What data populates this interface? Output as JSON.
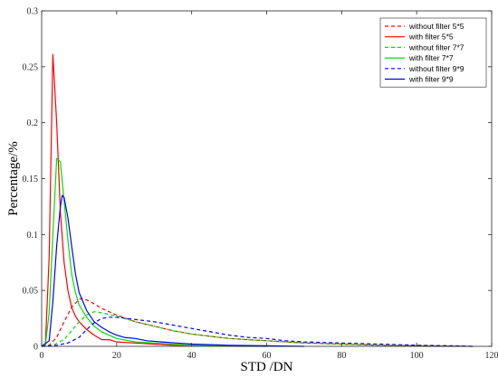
{
  "chart_data": {
    "type": "line",
    "xlabel": "STD /DN",
    "ylabel": "Percentage/%",
    "xlim": [
      0,
      120
    ],
    "ylim": [
      0,
      0.3
    ],
    "xticks": [
      "0",
      "20",
      "40",
      "60",
      "80",
      "100",
      "120"
    ],
    "yticks": [
      "0",
      "0.05",
      "0.1",
      "0.15",
      "0.2",
      "0.25",
      "0.3"
    ],
    "grid": false,
    "legend_position": "top-right",
    "series": [
      {
        "name": "without filter 5*5",
        "color": "#ff0000",
        "dashed": true,
        "points": [
          [
            0,
            0
          ],
          [
            2,
            0.001
          ],
          [
            4,
            0.008
          ],
          [
            6,
            0.022
          ],
          [
            8,
            0.035
          ],
          [
            10,
            0.042
          ],
          [
            11,
            0.043
          ],
          [
            13,
            0.04
          ],
          [
            16,
            0.034
          ],
          [
            20,
            0.028
          ],
          [
            25,
            0.022
          ],
          [
            30,
            0.018
          ],
          [
            35,
            0.014
          ],
          [
            40,
            0.011
          ],
          [
            45,
            0.009
          ],
          [
            50,
            0.007
          ],
          [
            55,
            0.006
          ],
          [
            60,
            0.005
          ],
          [
            70,
            0.003
          ],
          [
            80,
            0.002
          ],
          [
            90,
            0.001
          ],
          [
            100,
            0.0005
          ],
          [
            115,
            0
          ]
        ]
      },
      {
        "name": "with filter 5*5",
        "color": "#ff0000",
        "dashed": false,
        "points": [
          [
            0,
            0
          ],
          [
            1,
            0.001
          ],
          [
            2,
            0.08
          ],
          [
            3,
            0.261
          ],
          [
            4,
            0.2
          ],
          [
            5,
            0.12
          ],
          [
            6,
            0.075
          ],
          [
            7,
            0.05
          ],
          [
            8,
            0.035
          ],
          [
            9,
            0.027
          ],
          [
            10,
            0.022
          ],
          [
            12,
            0.015
          ],
          [
            14,
            0.01
          ],
          [
            16,
            0.006
          ],
          [
            18,
            0.006
          ],
          [
            20,
            0.004
          ],
          [
            25,
            0.003
          ],
          [
            30,
            0.002
          ],
          [
            35,
            0.001
          ],
          [
            40,
            0.001
          ],
          [
            50,
            0.0005
          ],
          [
            60,
            0
          ]
        ]
      },
      {
        "name": "without filter 7*7",
        "color": "#00e000",
        "dashed": true,
        "points": [
          [
            0,
            0
          ],
          [
            3,
            0.001
          ],
          [
            6,
            0.006
          ],
          [
            8,
            0.014
          ],
          [
            10,
            0.022
          ],
          [
            12,
            0.028
          ],
          [
            14,
            0.031
          ],
          [
            16,
            0.03
          ],
          [
            20,
            0.027
          ],
          [
            25,
            0.022
          ],
          [
            30,
            0.018
          ],
          [
            35,
            0.014
          ],
          [
            40,
            0.011
          ],
          [
            45,
            0.009
          ],
          [
            50,
            0.007
          ],
          [
            55,
            0.006
          ],
          [
            60,
            0.005
          ],
          [
            70,
            0.003
          ],
          [
            80,
            0.002
          ],
          [
            90,
            0.001
          ],
          [
            100,
            0.0005
          ],
          [
            115,
            0
          ]
        ]
      },
      {
        "name": "with filter 7*7",
        "color": "#00e000",
        "dashed": false,
        "points": [
          [
            0,
            0
          ],
          [
            1,
            0.001
          ],
          [
            2,
            0.03
          ],
          [
            3,
            0.1
          ],
          [
            4,
            0.168
          ],
          [
            5,
            0.165
          ],
          [
            6,
            0.13
          ],
          [
            7,
            0.095
          ],
          [
            8,
            0.065
          ],
          [
            9,
            0.048
          ],
          [
            10,
            0.037
          ],
          [
            12,
            0.026
          ],
          [
            14,
            0.018
          ],
          [
            16,
            0.013
          ],
          [
            18,
            0.01
          ],
          [
            20,
            0.007
          ],
          [
            25,
            0.004
          ],
          [
            30,
            0.003
          ],
          [
            35,
            0.002
          ],
          [
            40,
            0.001
          ],
          [
            50,
            0.0005
          ],
          [
            60,
            0
          ]
        ]
      },
      {
        "name": "without filter 9*9",
        "color": "#0000ff",
        "dashed": true,
        "points": [
          [
            0,
            0
          ],
          [
            4,
            0.001
          ],
          [
            7,
            0.003
          ],
          [
            10,
            0.008
          ],
          [
            12,
            0.015
          ],
          [
            14,
            0.021
          ],
          [
            16,
            0.025
          ],
          [
            18,
            0.026
          ],
          [
            20,
            0.026
          ],
          [
            25,
            0.024
          ],
          [
            30,
            0.022
          ],
          [
            35,
            0.019
          ],
          [
            40,
            0.016
          ],
          [
            45,
            0.013
          ],
          [
            50,
            0.01
          ],
          [
            55,
            0.008
          ],
          [
            60,
            0.007
          ],
          [
            65,
            0.005
          ],
          [
            70,
            0.004
          ],
          [
            80,
            0.003
          ],
          [
            90,
            0.002
          ],
          [
            100,
            0.001
          ],
          [
            110,
            0.0005
          ],
          [
            115,
            0
          ]
        ]
      },
      {
        "name": "with filter 9*9",
        "color": "#0000ff",
        "dashed": false,
        "points": [
          [
            0,
            0
          ],
          [
            2,
            0.005
          ],
          [
            3,
            0.04
          ],
          [
            4,
            0.09
          ],
          [
            5,
            0.125
          ],
          [
            5.5,
            0.135
          ],
          [
            6,
            0.133
          ],
          [
            7,
            0.115
          ],
          [
            8,
            0.09
          ],
          [
            9,
            0.065
          ],
          [
            10,
            0.048
          ],
          [
            12,
            0.032
          ],
          [
            14,
            0.022
          ],
          [
            16,
            0.017
          ],
          [
            18,
            0.013
          ],
          [
            20,
            0.01
          ],
          [
            22,
            0.008
          ],
          [
            25,
            0.007
          ],
          [
            28,
            0.005
          ],
          [
            32,
            0.004
          ],
          [
            36,
            0.003
          ],
          [
            40,
            0.002
          ],
          [
            50,
            0.001
          ],
          [
            60,
            0.0005
          ],
          [
            70,
            0
          ]
        ]
      }
    ]
  }
}
